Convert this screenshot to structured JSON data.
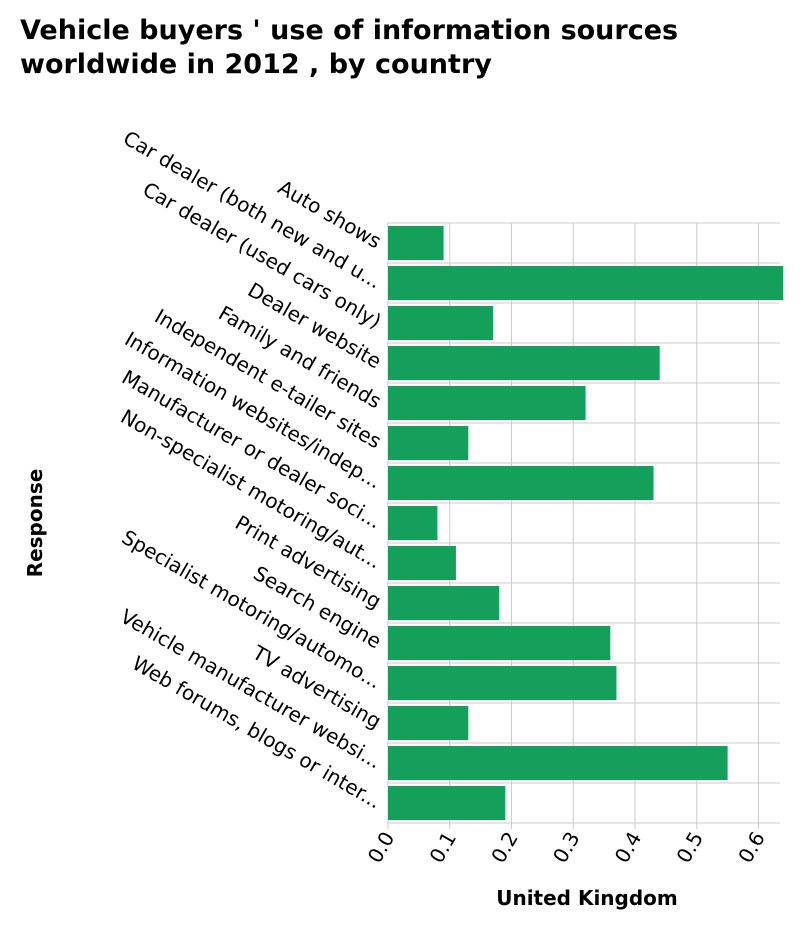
{
  "chart_data": {
    "type": "bar",
    "orientation": "horizontal",
    "title": "Vehicle buyers ' use of information sources worldwide in 2012 , by country",
    "xlabel": "United Kingdom",
    "ylabel": "Response",
    "xlim": [
      0,
      0.64
    ],
    "xticks": [
      "0.0",
      "0.1",
      "0.2",
      "0.3",
      "0.4",
      "0.5",
      "0.6"
    ],
    "grid": true,
    "bar_color": "#14a05a",
    "categories": [
      "Auto shows",
      "Car dealer (both new and u...",
      "Car dealer (used cars only)",
      "Dealer website",
      "Family and friends",
      "Independent e-tailer sites",
      "Information websites/indep...",
      "Manufacturer or dealer soci...",
      "Non-specialist motoring/aut...",
      "Print advertising",
      "Search engine",
      "Specialist motoring/automo...",
      "TV advertising",
      "Vehicle manufacturer websi...",
      "Web forums, blogs or inter..."
    ],
    "values": [
      0.09,
      0.64,
      0.17,
      0.44,
      0.32,
      0.13,
      0.43,
      0.08,
      0.11,
      0.18,
      0.36,
      0.37,
      0.13,
      0.55,
      0.19
    ]
  }
}
